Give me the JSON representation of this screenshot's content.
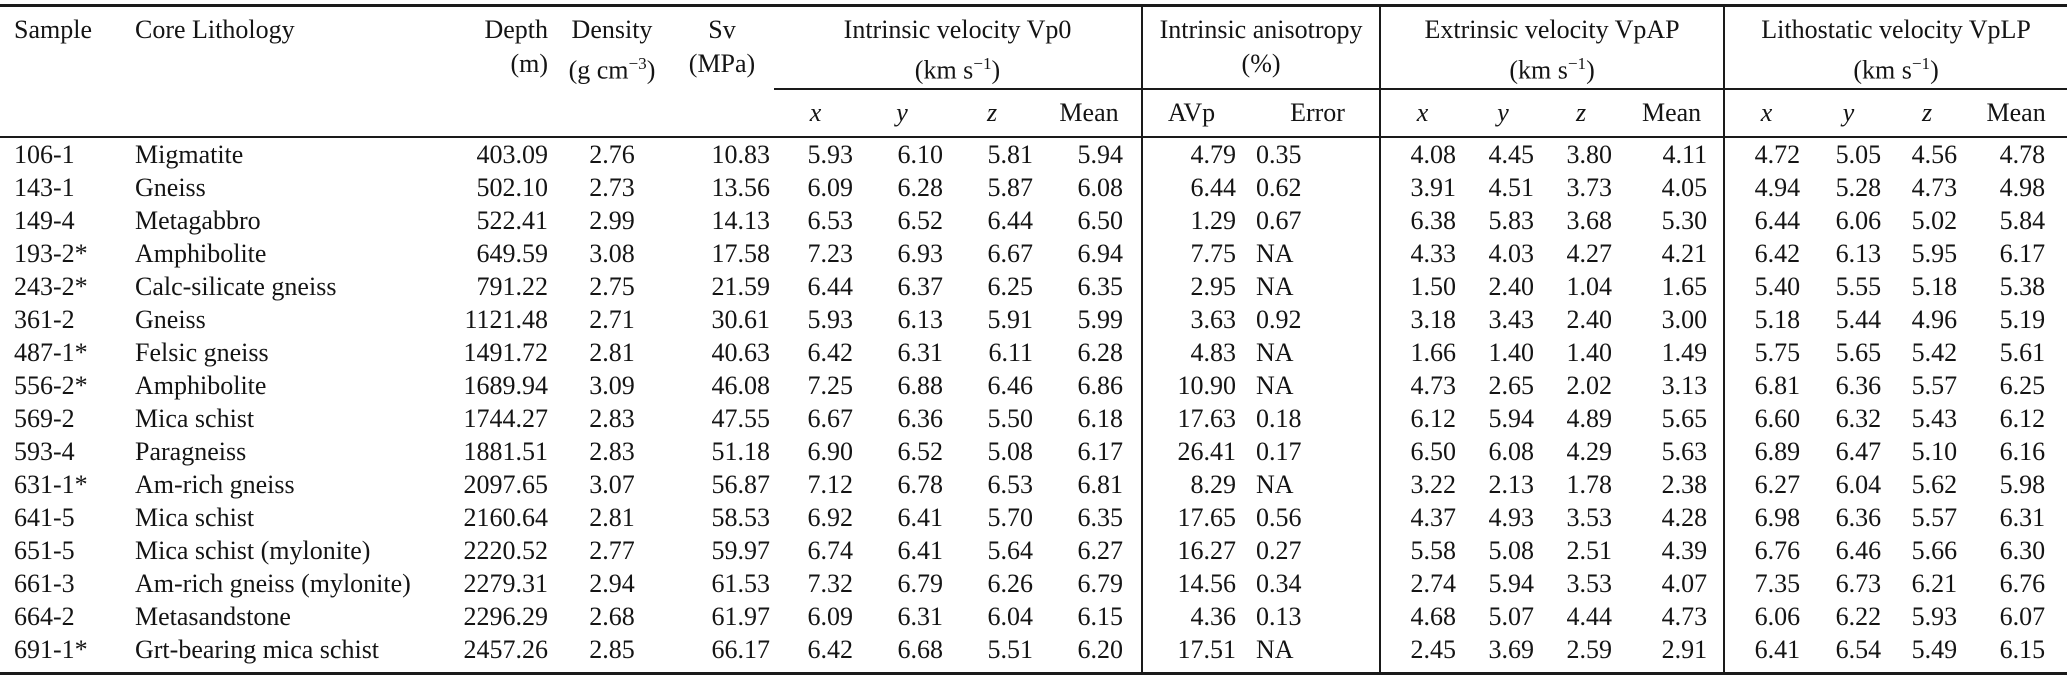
{
  "table": {
    "header": {
      "sample": "Sample",
      "lithology": "Core Lithology",
      "depth": {
        "label": "Depth",
        "unit": "(m)"
      },
      "density": {
        "label": "Density",
        "unit_prefix": "(g cm",
        "unit_exp": "−3",
        "unit_suffix": ")"
      },
      "sv": {
        "label": "Sv",
        "unit": "(MPa)"
      },
      "groups": [
        {
          "title": "Intrinsic velocity Vp0",
          "unit_prefix": "(km s",
          "unit_exp": "−1",
          "unit_suffix": ")",
          "subcols": [
            "x",
            "y",
            "z",
            "Mean"
          ]
        },
        {
          "title": "Intrinsic anisotropy",
          "unit": "(%)",
          "subcols": [
            "AVp",
            "Error"
          ]
        },
        {
          "title": "Extrinsic velocity VpAP",
          "unit_prefix": "(km s",
          "unit_exp": "−1",
          "unit_suffix": ")",
          "subcols": [
            "x",
            "y",
            "z",
            "Mean"
          ]
        },
        {
          "title": "Lithostatic velocity VpLP",
          "unit_prefix": "(km s",
          "unit_exp": "−1",
          "unit_suffix": ")",
          "subcols": [
            "x",
            "y",
            "z",
            "Mean"
          ]
        }
      ]
    },
    "rows": [
      {
        "sample": "106-1",
        "lithology": "Migmatite",
        "depth": "403.09",
        "density": "2.76",
        "sv": "10.83",
        "vp0": [
          "5.93",
          "6.10",
          "5.81",
          "5.94"
        ],
        "avp": "4.79",
        "error": "0.35",
        "vpap": [
          "4.08",
          "4.45",
          "3.80",
          "4.11"
        ],
        "vplp": [
          "4.72",
          "5.05",
          "4.56",
          "4.78"
        ]
      },
      {
        "sample": "143-1",
        "lithology": "Gneiss",
        "depth": "502.10",
        "density": "2.73",
        "sv": "13.56",
        "vp0": [
          "6.09",
          "6.28",
          "5.87",
          "6.08"
        ],
        "avp": "6.44",
        "error": "0.62",
        "vpap": [
          "3.91",
          "4.51",
          "3.73",
          "4.05"
        ],
        "vplp": [
          "4.94",
          "5.28",
          "4.73",
          "4.98"
        ]
      },
      {
        "sample": "149-4",
        "lithology": "Metagabbro",
        "depth": "522.41",
        "density": "2.99",
        "sv": "14.13",
        "vp0": [
          "6.53",
          "6.52",
          "6.44",
          "6.50"
        ],
        "avp": "1.29",
        "error": "0.67",
        "vpap": [
          "6.38",
          "5.83",
          "3.68",
          "5.30"
        ],
        "vplp": [
          "6.44",
          "6.06",
          "5.02",
          "5.84"
        ]
      },
      {
        "sample": "193-2*",
        "lithology": "Amphibolite",
        "depth": "649.59",
        "density": "3.08",
        "sv": "17.58",
        "vp0": [
          "7.23",
          "6.93",
          "6.67",
          "6.94"
        ],
        "avp": "7.75",
        "error": "NA",
        "vpap": [
          "4.33",
          "4.03",
          "4.27",
          "4.21"
        ],
        "vplp": [
          "6.42",
          "6.13",
          "5.95",
          "6.17"
        ]
      },
      {
        "sample": "243-2*",
        "lithology": "Calc-silicate gneiss",
        "depth": "791.22",
        "density": "2.75",
        "sv": "21.59",
        "vp0": [
          "6.44",
          "6.37",
          "6.25",
          "6.35"
        ],
        "avp": "2.95",
        "error": "NA",
        "vpap": [
          "1.50",
          "2.40",
          "1.04",
          "1.65"
        ],
        "vplp": [
          "5.40",
          "5.55",
          "5.18",
          "5.38"
        ]
      },
      {
        "sample": "361-2",
        "lithology": "Gneiss",
        "depth": "1121.48",
        "density": "2.71",
        "sv": "30.61",
        "vp0": [
          "5.93",
          "6.13",
          "5.91",
          "5.99"
        ],
        "avp": "3.63",
        "error": "0.92",
        "vpap": [
          "3.18",
          "3.43",
          "2.40",
          "3.00"
        ],
        "vplp": [
          "5.18",
          "5.44",
          "4.96",
          "5.19"
        ]
      },
      {
        "sample": "487-1*",
        "lithology": "Felsic gneiss",
        "depth": "1491.72",
        "density": "2.81",
        "sv": "40.63",
        "vp0": [
          "6.42",
          "6.31",
          "6.11",
          "6.28"
        ],
        "avp": "4.83",
        "error": "NA",
        "vpap": [
          "1.66",
          "1.40",
          "1.40",
          "1.49"
        ],
        "vplp": [
          "5.75",
          "5.65",
          "5.42",
          "5.61"
        ]
      },
      {
        "sample": "556-2*",
        "lithology": "Amphibolite",
        "depth": "1689.94",
        "density": "3.09",
        "sv": "46.08",
        "vp0": [
          "7.25",
          "6.88",
          "6.46",
          "6.86"
        ],
        "avp": "10.90",
        "error": "NA",
        "vpap": [
          "4.73",
          "2.65",
          "2.02",
          "3.13"
        ],
        "vplp": [
          "6.81",
          "6.36",
          "5.57",
          "6.25"
        ]
      },
      {
        "sample": "569-2",
        "lithology": "Mica schist",
        "depth": "1744.27",
        "density": "2.83",
        "sv": "47.55",
        "vp0": [
          "6.67",
          "6.36",
          "5.50",
          "6.18"
        ],
        "avp": "17.63",
        "error": "0.18",
        "vpap": [
          "6.12",
          "5.94",
          "4.89",
          "5.65"
        ],
        "vplp": [
          "6.60",
          "6.32",
          "5.43",
          "6.12"
        ]
      },
      {
        "sample": "593-4",
        "lithology": "Paragneiss",
        "depth": "1881.51",
        "density": "2.83",
        "sv": "51.18",
        "vp0": [
          "6.90",
          "6.52",
          "5.08",
          "6.17"
        ],
        "avp": "26.41",
        "error": "0.17",
        "vpap": [
          "6.50",
          "6.08",
          "4.29",
          "5.63"
        ],
        "vplp": [
          "6.89",
          "6.47",
          "5.10",
          "6.16"
        ]
      },
      {
        "sample": "631-1*",
        "lithology": "Am-rich gneiss",
        "depth": "2097.65",
        "density": "3.07",
        "sv": "56.87",
        "vp0": [
          "7.12",
          "6.78",
          "6.53",
          "6.81"
        ],
        "avp": "8.29",
        "error": "NA",
        "vpap": [
          "3.22",
          "2.13",
          "1.78",
          "2.38"
        ],
        "vplp": [
          "6.27",
          "6.04",
          "5.62",
          "5.98"
        ]
      },
      {
        "sample": "641-5",
        "lithology": "Mica schist",
        "depth": "2160.64",
        "density": "2.81",
        "sv": "58.53",
        "vp0": [
          "6.92",
          "6.41",
          "5.70",
          "6.35"
        ],
        "avp": "17.65",
        "error": "0.56",
        "vpap": [
          "4.37",
          "4.93",
          "3.53",
          "4.28"
        ],
        "vplp": [
          "6.98",
          "6.36",
          "5.57",
          "6.31"
        ]
      },
      {
        "sample": "651-5",
        "lithology": "Mica schist (mylonite)",
        "depth": "2220.52",
        "density": "2.77",
        "sv": "59.97",
        "vp0": [
          "6.74",
          "6.41",
          "5.64",
          "6.27"
        ],
        "avp": "16.27",
        "error": "0.27",
        "vpap": [
          "5.58",
          "5.08",
          "2.51",
          "4.39"
        ],
        "vplp": [
          "6.76",
          "6.46",
          "5.66",
          "6.30"
        ]
      },
      {
        "sample": "661-3",
        "lithology": "Am-rich gneiss (mylonite)",
        "depth": "2279.31",
        "density": "2.94",
        "sv": "61.53",
        "vp0": [
          "7.32",
          "6.79",
          "6.26",
          "6.79"
        ],
        "avp": "14.56",
        "error": "0.34",
        "vpap": [
          "2.74",
          "5.94",
          "3.53",
          "4.07"
        ],
        "vplp": [
          "7.35",
          "6.73",
          "6.21",
          "6.76"
        ]
      },
      {
        "sample": "664-2",
        "lithology": "Metasandstone",
        "depth": "2296.29",
        "density": "2.68",
        "sv": "61.97",
        "vp0": [
          "6.09",
          "6.31",
          "6.04",
          "6.15"
        ],
        "avp": "4.36",
        "error": "0.13",
        "vpap": [
          "4.68",
          "5.07",
          "4.44",
          "4.73"
        ],
        "vplp": [
          "6.06",
          "6.22",
          "5.93",
          "6.07"
        ]
      },
      {
        "sample": "691-1*",
        "lithology": "Grt-bearing mica schist",
        "depth": "2457.26",
        "density": "2.85",
        "sv": "66.17",
        "vp0": [
          "6.42",
          "6.68",
          "5.51",
          "6.20"
        ],
        "avp": "17.51",
        "error": "NA",
        "vpap": [
          "2.45",
          "3.69",
          "2.59",
          "2.91"
        ],
        "vplp": [
          "6.41",
          "6.54",
          "5.49",
          "6.15"
        ]
      }
    ]
  }
}
